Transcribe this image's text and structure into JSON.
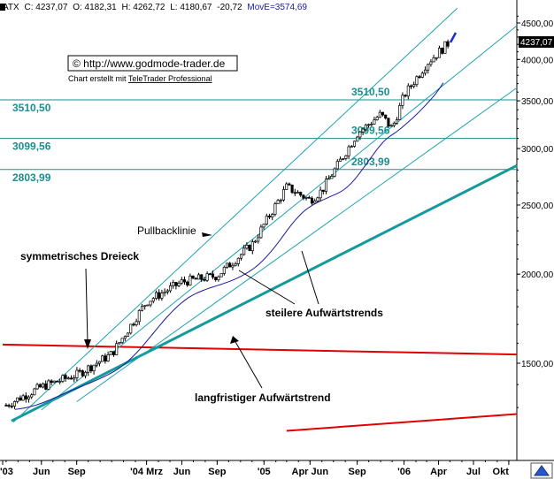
{
  "header": {
    "instrument": "ATX",
    "close_label": "C: 4237,07",
    "open_label": "O: 4182,31",
    "high_label": "H: 4262,72",
    "low_label": "L: 4180,67",
    "change_label": "-20,72",
    "ma_label": "MovE=3574,69"
  },
  "watermark": {
    "url": "© http://www.godmode-trader.de",
    "credit_prefix": "Chart erstellt mit ",
    "credit_link": "TeleTrader Professional"
  },
  "last_price_label": "4237,07",
  "colors": {
    "support_lines": "#1a8f8f",
    "trend_lines": "#1aa3b3",
    "long_trend": "#149a9a",
    "triangle": "#e00000",
    "moving_average": "#1a1aa0",
    "candles": "#000000"
  },
  "chart_data": {
    "type": "candlestick",
    "scale": "log",
    "ylim": [
      1200,
      4650
    ],
    "x_ticks": [
      "'03",
      "Jun",
      "Sep",
      "'04 Mrz",
      "Jun",
      "Sep",
      "'05",
      "Apr Jun",
      "Sep",
      "'06",
      "Apr",
      "Jul",
      "Okt"
    ],
    "y_ticks": [
      "4500,00",
      "4000,00",
      "3500,00",
      "3000,00",
      "2500,00",
      "2000,00",
      "1500,00"
    ],
    "price_path": [
      {
        "x": "2003-03",
        "y": 1310
      },
      {
        "x": "2003-06",
        "y": 1390
      },
      {
        "x": "2003-09",
        "y": 1445
      },
      {
        "x": "2003-12",
        "y": 1545
      },
      {
        "x": "2004-03",
        "y": 1830
      },
      {
        "x": "2004-06",
        "y": 1950
      },
      {
        "x": "2004-09",
        "y": 1990
      },
      {
        "x": "2004-12",
        "y": 2200
      },
      {
        "x": "2005-03",
        "y": 2650
      },
      {
        "x": "2005-05",
        "y": 2540
      },
      {
        "x": "2005-06",
        "y": 2620
      },
      {
        "x": "2005-09",
        "y": 3150
      },
      {
        "x": "2005-11",
        "y": 3350
      },
      {
        "x": "2005-12",
        "y": 3200
      },
      {
        "x": "2006-01",
        "y": 3560
      },
      {
        "x": "2006-03",
        "y": 3950
      },
      {
        "x": "2006-05",
        "y": 4237
      }
    ],
    "support_levels": [
      {
        "value": 3510.5,
        "label": "3510,50"
      },
      {
        "value": 3099.56,
        "label": "3099,56"
      },
      {
        "value": 2803.99,
        "label": "2803,99"
      }
    ],
    "annotations": [
      {
        "text": "Pullbacklinie"
      },
      {
        "text": "symmetrisches Dreieck"
      },
      {
        "text": "steilere Aufwärtstrends"
      },
      {
        "text": "langfristiger Aufwärtstrend"
      }
    ]
  }
}
